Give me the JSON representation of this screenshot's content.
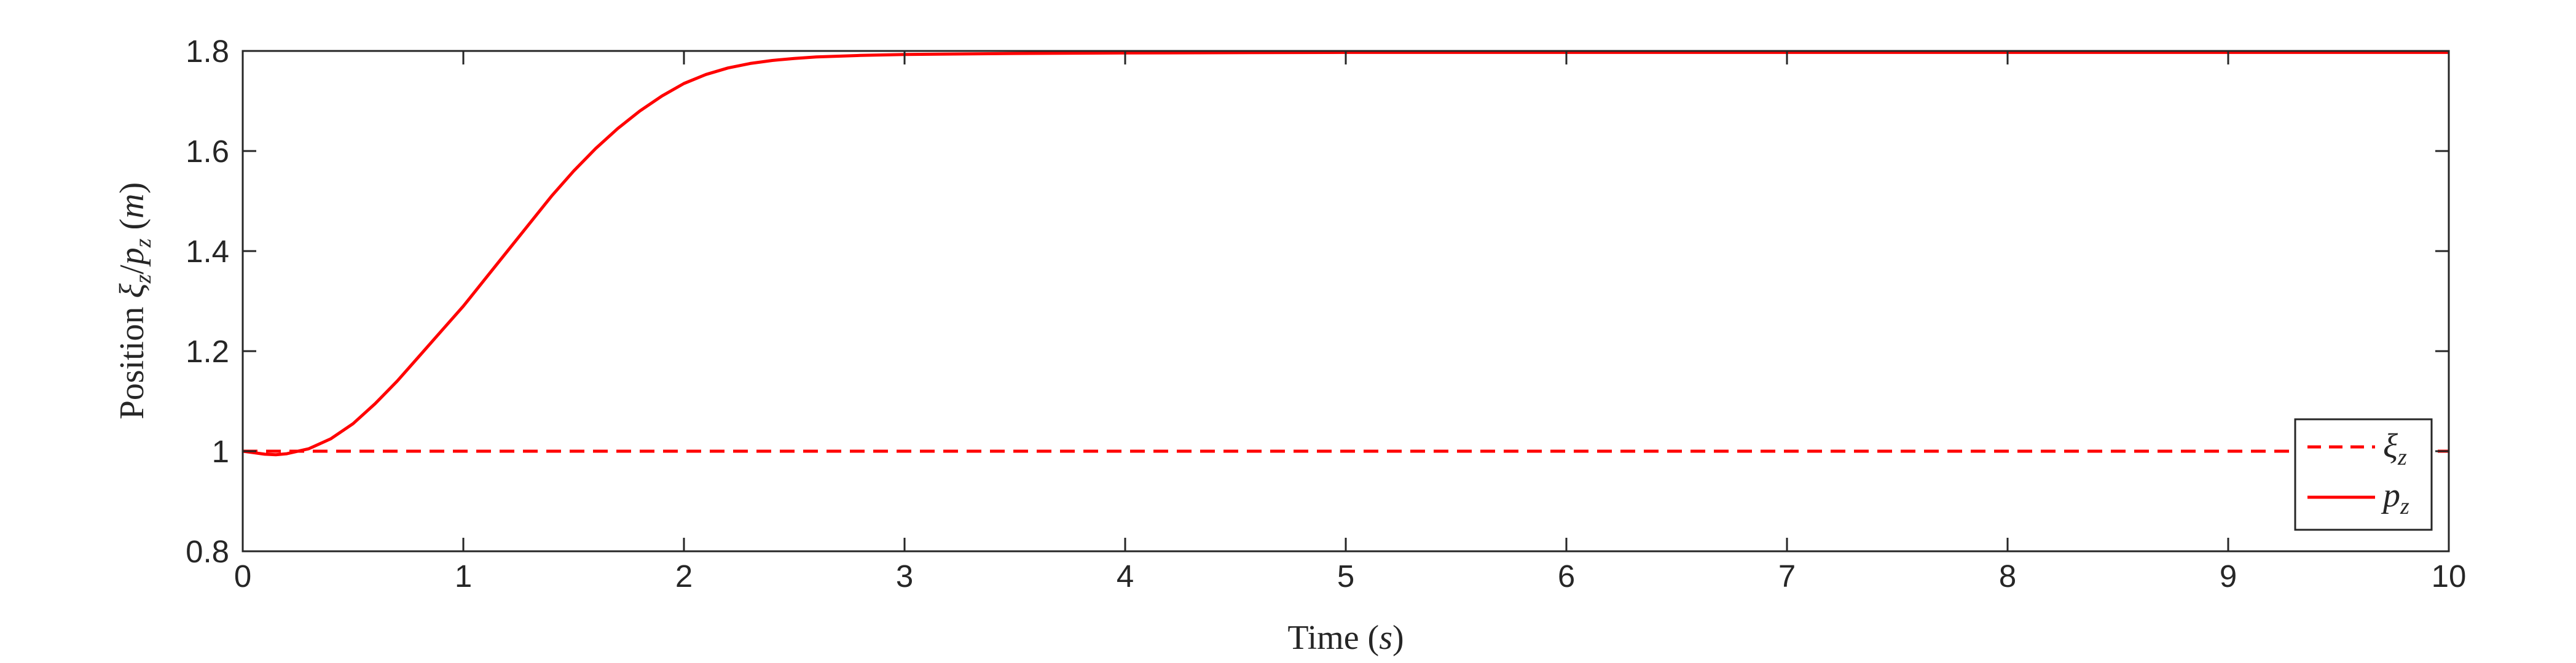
{
  "chart_data": {
    "type": "line",
    "xlabel": {
      "prefix": "Time (",
      "var": "s",
      "suffix": ")"
    },
    "ylabel": {
      "prefix": "Position ",
      "var1": "ξ",
      "sub1": "z",
      "sep": "/",
      "var2": "p",
      "sub2": "z",
      "open": " (",
      "unit": "m",
      "close": ")"
    },
    "xlim": [
      0,
      10
    ],
    "ylim": [
      0.8,
      1.8
    ],
    "xticks": [
      0,
      1,
      2,
      3,
      4,
      5,
      6,
      7,
      8,
      9,
      10
    ],
    "xtick_labels": [
      "0",
      "1",
      "2",
      "3",
      "4",
      "5",
      "6",
      "7",
      "8",
      "9",
      "10"
    ],
    "yticks": [
      0.8,
      1.0,
      1.2,
      1.4,
      1.6,
      1.8
    ],
    "ytick_labels": [
      "0.8",
      "1",
      "1.2",
      "1.4",
      "1.6",
      "1.8"
    ],
    "grid": false,
    "legend_position": "bottom-right",
    "series": [
      {
        "name": "ξz",
        "legend_var": "ξ",
        "legend_sub": "z",
        "style": "dashed",
        "color": "#ff0000",
        "x": [
          0,
          10
        ],
        "y": [
          1.0,
          1.0
        ]
      },
      {
        "name": "pz",
        "legend_var": "p",
        "legend_sub": "z",
        "style": "solid",
        "color": "#ff0000",
        "x": [
          0,
          0.05,
          0.1,
          0.15,
          0.2,
          0.3,
          0.4,
          0.5,
          0.6,
          0.7,
          0.8,
          0.9,
          1.0,
          1.1,
          1.2,
          1.3,
          1.4,
          1.5,
          1.6,
          1.7,
          1.8,
          1.9,
          2.0,
          2.1,
          2.2,
          2.3,
          2.4,
          2.5,
          2.6,
          2.8,
          3.0,
          3.5,
          4.0,
          5.0,
          6.0,
          7.0,
          8.0,
          9.0,
          10.0
        ],
        "y": [
          1.0,
          0.997,
          0.994,
          0.993,
          0.995,
          1.005,
          1.025,
          1.055,
          1.095,
          1.14,
          1.19,
          1.24,
          1.29,
          1.345,
          1.4,
          1.455,
          1.51,
          1.56,
          1.605,
          1.645,
          1.68,
          1.71,
          1.735,
          1.753,
          1.766,
          1.775,
          1.781,
          1.785,
          1.788,
          1.791,
          1.793,
          1.795,
          1.796,
          1.797,
          1.797,
          1.797,
          1.797,
          1.797,
          1.797
        ]
      }
    ]
  }
}
